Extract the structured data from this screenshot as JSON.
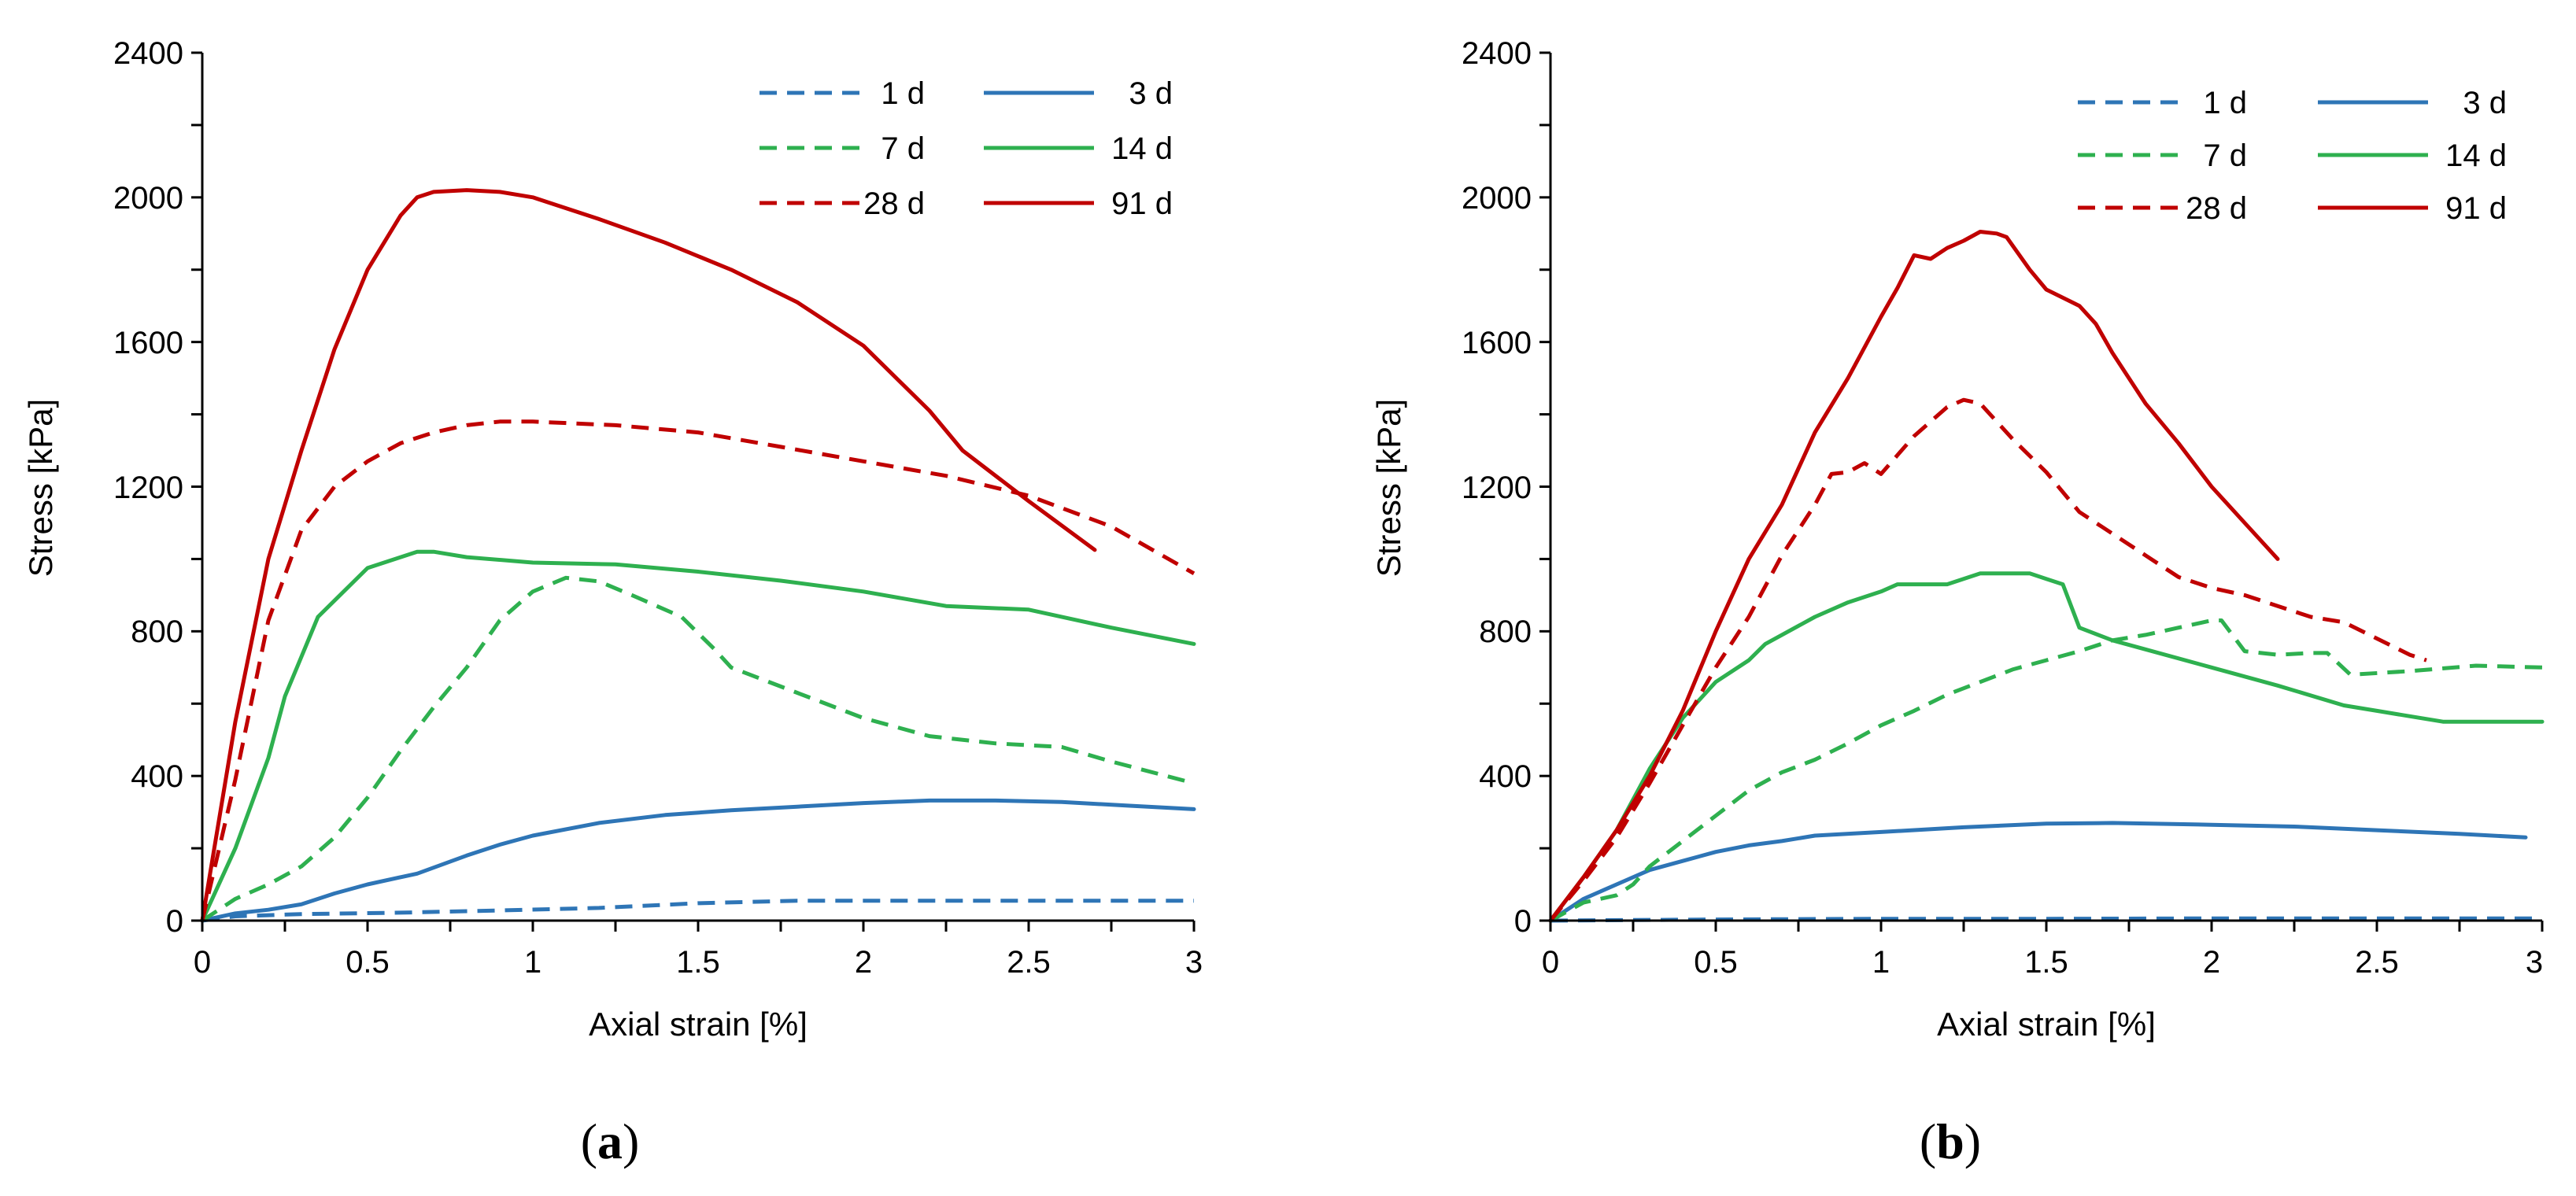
{
  "figure": {
    "panel_labels": [
      {
        "open": "(",
        "letter": "a",
        "close": ")"
      },
      {
        "open": "(",
        "letter": "b",
        "close": ")"
      }
    ]
  },
  "colors": {
    "blue": "#2E75B6",
    "green": "#2EB04F",
    "red": "#C00000",
    "axis": "#000000"
  },
  "chart_data": [
    {
      "type": "line",
      "panel": "a",
      "title": "",
      "xlabel": "Axial strain [%]",
      "ylabel": "Stress [kPa]",
      "xlim": [
        0,
        3
      ],
      "ylim": [
        0,
        2400
      ],
      "xticks": [
        0,
        0.5,
        1,
        1.5,
        2,
        2.5,
        3
      ],
      "xtick_labels": [
        "0",
        "0.5",
        "1",
        "1.5",
        "2",
        "2.5",
        "3"
      ],
      "yticks": [
        0,
        400,
        800,
        1200,
        1600,
        2000,
        2400
      ],
      "ytick_labels": [
        "0",
        "400",
        "800",
        "1200",
        "1600",
        "2000",
        "2400"
      ],
      "grid": false,
      "legend_position": "top-right",
      "series": [
        {
          "name": "1 d",
          "color": "#2E75B6",
          "dash": "dashed",
          "x": [
            0,
            0.1,
            0.3,
            0.6,
            0.9,
            1.2,
            1.5,
            1.8,
            2.1,
            2.5,
            3.0
          ],
          "y": [
            0,
            12,
            18,
            22,
            28,
            35,
            48,
            55,
            55,
            55,
            55
          ]
        },
        {
          "name": "3 d",
          "color": "#2E75B6",
          "dash": "solid",
          "x": [
            0,
            0.1,
            0.2,
            0.3,
            0.4,
            0.5,
            0.65,
            0.8,
            0.9,
            1.0,
            1.2,
            1.4,
            1.6,
            1.8,
            2.0,
            2.2,
            2.4,
            2.6,
            2.8,
            3.0
          ],
          "y": [
            0,
            20,
            30,
            45,
            75,
            100,
            130,
            180,
            210,
            235,
            270,
            292,
            305,
            315,
            325,
            332,
            332,
            328,
            318,
            308
          ]
        },
        {
          "name": "7 d",
          "color": "#2EB04F",
          "dash": "dashed",
          "x": [
            0,
            0.1,
            0.2,
            0.3,
            0.4,
            0.5,
            0.6,
            0.7,
            0.8,
            0.9,
            1.0,
            1.1,
            1.2,
            1.3,
            1.45,
            1.55,
            1.6,
            1.8,
            2.0,
            2.2,
            2.4,
            2.6,
            2.75,
            3.0
          ],
          "y": [
            0,
            60,
            100,
            150,
            230,
            340,
            470,
            590,
            700,
            830,
            910,
            948,
            938,
            900,
            840,
            750,
            700,
            630,
            560,
            510,
            490,
            480,
            440,
            380
          ]
        },
        {
          "name": "14 d",
          "color": "#2EB04F",
          "dash": "solid",
          "x": [
            0,
            0.1,
            0.2,
            0.25,
            0.35,
            0.5,
            0.6,
            0.65,
            0.7,
            0.8,
            1.0,
            1.25,
            1.5,
            1.75,
            2.0,
            2.25,
            2.5,
            2.75,
            3.0
          ],
          "y": [
            0,
            200,
            450,
            620,
            840,
            975,
            1005,
            1020,
            1020,
            1005,
            990,
            985,
            965,
            940,
            910,
            870,
            860,
            810,
            765
          ]
        },
        {
          "name": "28 d",
          "color": "#C00000",
          "dash": "dashed",
          "x": [
            0,
            0.1,
            0.2,
            0.3,
            0.4,
            0.5,
            0.6,
            0.7,
            0.8,
            0.9,
            1.0,
            1.25,
            1.5,
            1.75,
            2.0,
            2.25,
            2.5,
            2.75,
            3.0
          ],
          "y": [
            0,
            390,
            830,
            1080,
            1200,
            1270,
            1320,
            1350,
            1370,
            1380,
            1380,
            1370,
            1350,
            1310,
            1270,
            1230,
            1175,
            1090,
            960
          ]
        },
        {
          "name": "91 d",
          "color": "#C00000",
          "dash": "solid",
          "x": [
            0,
            0.1,
            0.2,
            0.3,
            0.4,
            0.5,
            0.6,
            0.65,
            0.7,
            0.8,
            0.9,
            1.0,
            1.2,
            1.4,
            1.6,
            1.8,
            2.0,
            2.2,
            2.3,
            2.5,
            2.7
          ],
          "y": [
            0,
            550,
            1000,
            1300,
            1580,
            1800,
            1950,
            2000,
            2015,
            2020,
            2015,
            2000,
            1940,
            1875,
            1800,
            1710,
            1590,
            1410,
            1300,
            1160,
            1025
          ]
        }
      ]
    },
    {
      "type": "line",
      "panel": "b",
      "title": "",
      "xlabel": "Axial strain [%]",
      "ylabel": "Stress [kPa]",
      "xlim": [
        0,
        3
      ],
      "ylim": [
        0,
        2400
      ],
      "xticks": [
        0,
        0.5,
        1,
        1.5,
        2,
        2.5,
        3
      ],
      "xtick_labels": [
        "0",
        "0.5",
        "1",
        "1.5",
        "2",
        "2.5",
        "3"
      ],
      "yticks": [
        0,
        400,
        800,
        1200,
        1600,
        2000,
        2400
      ],
      "ytick_labels": [
        "0",
        "400",
        "800",
        "1200",
        "1600",
        "2000",
        "2400"
      ],
      "grid": false,
      "legend_position": "top-right",
      "series": [
        {
          "name": "1 d",
          "color": "#2E75B6",
          "dash": "dashed",
          "x": [
            0,
            0.5,
            1.0,
            1.5,
            2.0,
            2.5,
            3.0
          ],
          "y": [
            0,
            3,
            5,
            5,
            6,
            6,
            6
          ]
        },
        {
          "name": "3 d",
          "color": "#2E75B6",
          "dash": "solid",
          "x": [
            0,
            0.1,
            0.2,
            0.3,
            0.4,
            0.5,
            0.6,
            0.7,
            0.8,
            1.0,
            1.25,
            1.5,
            1.7,
            2.0,
            2.25,
            2.5,
            2.75,
            2.95
          ],
          "y": [
            0,
            60,
            100,
            140,
            165,
            190,
            208,
            220,
            235,
            245,
            258,
            268,
            270,
            265,
            260,
            250,
            240,
            230
          ]
        },
        {
          "name": "7 d",
          "color": "#2EB04F",
          "dash": "dashed",
          "x": [
            0,
            0.1,
            0.2,
            0.25,
            0.3,
            0.4,
            0.5,
            0.6,
            0.7,
            0.8,
            0.9,
            1.0,
            1.1,
            1.2,
            1.3,
            1.4,
            1.5,
            1.6,
            1.7,
            1.8,
            1.9,
            2.0,
            2.03,
            2.1,
            2.2,
            2.3,
            2.35,
            2.42,
            2.6,
            2.8,
            3.0
          ],
          "y": [
            0,
            50,
            70,
            100,
            150,
            220,
            290,
            360,
            410,
            445,
            490,
            540,
            580,
            625,
            660,
            695,
            720,
            745,
            775,
            790,
            810,
            830,
            830,
            745,
            735,
            740,
            740,
            680,
            690,
            705,
            700
          ]
        },
        {
          "name": "14 d",
          "color": "#2EB04F",
          "dash": "solid",
          "x": [
            0,
            0.1,
            0.2,
            0.3,
            0.4,
            0.5,
            0.6,
            0.65,
            0.8,
            0.9,
            1.0,
            1.05,
            1.2,
            1.3,
            1.45,
            1.5,
            1.55,
            1.6,
            1.7,
            1.8,
            2.0,
            2.2,
            2.4,
            2.5,
            2.6,
            2.7,
            3.0
          ],
          "y": [
            0,
            120,
            250,
            420,
            560,
            660,
            720,
            765,
            840,
            880,
            910,
            930,
            930,
            960,
            960,
            945,
            930,
            810,
            775,
            750,
            700,
            650,
            595,
            580,
            565,
            550,
            550
          ]
        },
        {
          "name": "28 d",
          "color": "#C00000",
          "dash": "dashed",
          "x": [
            0,
            0.1,
            0.2,
            0.3,
            0.4,
            0.5,
            0.6,
            0.7,
            0.8,
            0.85,
            0.9,
            0.95,
            1.0,
            1.1,
            1.2,
            1.25,
            1.3,
            1.4,
            1.5,
            1.6,
            1.7,
            1.8,
            1.9,
            2.0,
            2.1,
            2.2,
            2.3,
            2.4,
            2.5,
            2.6,
            2.65
          ],
          "y": [
            0,
            110,
            230,
            380,
            540,
            700,
            840,
            1010,
            1150,
            1235,
            1240,
            1265,
            1235,
            1340,
            1420,
            1440,
            1430,
            1330,
            1240,
            1130,
            1070,
            1010,
            950,
            920,
            900,
            870,
            840,
            825,
            780,
            735,
            720
          ]
        },
        {
          "name": "91 d",
          "color": "#C00000",
          "dash": "solid",
          "x": [
            0,
            0.1,
            0.2,
            0.3,
            0.4,
            0.5,
            0.6,
            0.7,
            0.8,
            0.9,
            1.0,
            1.05,
            1.1,
            1.15,
            1.2,
            1.25,
            1.3,
            1.35,
            1.38,
            1.45,
            1.5,
            1.6,
            1.65,
            1.7,
            1.8,
            1.9,
            2.0,
            2.1,
            2.2
          ],
          "y": [
            0,
            120,
            250,
            400,
            580,
            800,
            1000,
            1150,
            1350,
            1500,
            1670,
            1750,
            1840,
            1830,
            1860,
            1880,
            1905,
            1900,
            1890,
            1800,
            1745,
            1700,
            1650,
            1570,
            1430,
            1320,
            1200,
            1100,
            1000
          ]
        }
      ]
    }
  ]
}
